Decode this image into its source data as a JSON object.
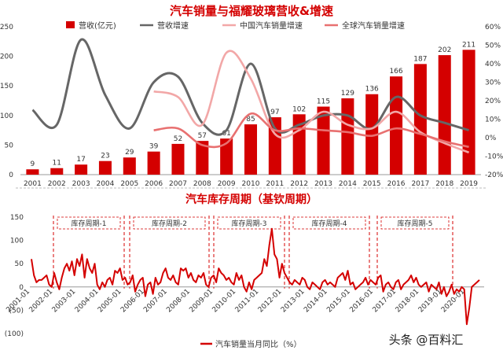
{
  "charts": [
    {
      "type": "bar",
      "title": "汽车销量与福耀玻璃营收&增速",
      "x": [
        "2001",
        "2002",
        "2003",
        "2004",
        "2005",
        "2006",
        "2007",
        "2008",
        "2009",
        "2010",
        "2011",
        "2012",
        "2013",
        "2014",
        "2015",
        "2016",
        "2017",
        "2018",
        "2019"
      ],
      "series": [
        {
          "name": "营收(亿元)",
          "kind": "bar",
          "axis": "left",
          "color": "#d40000",
          "values": [
            9,
            11,
            17,
            23,
            29,
            39,
            52,
            57,
            61,
            85,
            97,
            102,
            115,
            129,
            136,
            166,
            187,
            202,
            211
          ]
        },
        {
          "name": "营收增速",
          "kind": "line",
          "axis": "right",
          "color": "#666666",
          "values": [
            15,
            7,
            53,
            23,
            5,
            30,
            33,
            8,
            4,
            40,
            5,
            7,
            12,
            12,
            5,
            22,
            12,
            8,
            4
          ]
        },
        {
          "name": "中国汽车销量增速",
          "kind": "line",
          "axis": "right",
          "color": "#f2a7a7",
          "values": [
            null,
            null,
            null,
            null,
            null,
            25,
            22,
            7,
            46,
            32,
            2,
            4,
            14,
            7,
            5,
            14,
            3,
            -3,
            -8
          ]
        },
        {
          "name": "全球汽车销量增速",
          "kind": "line",
          "axis": "right",
          "color": "#e87070",
          "values": [
            null,
            null,
            null,
            null,
            null,
            4,
            5,
            -4,
            -3,
            13,
            4,
            5,
            4,
            3,
            1,
            5,
            2,
            -2,
            -5
          ]
        }
      ],
      "ylim_left": [
        0,
        250
      ],
      "yticks_left": [
        "0",
        "50",
        "100",
        "150",
        "200",
        "250"
      ],
      "ylim_right": [
        -20,
        60
      ],
      "yticks_right": [
        "-20%",
        "-10%",
        "0%",
        "10%",
        "20%",
        "30%",
        "40%",
        "50%",
        "60%"
      ],
      "grid": false,
      "legend": "top"
    },
    {
      "type": "line",
      "title": "汽车库存周期（基钦周期）",
      "x_ticks": [
        "2001-01",
        "2002-01",
        "2003-01",
        "2004-01",
        "2005-01",
        "2006-01",
        "2007-01",
        "2008-01",
        "2009-01",
        "2010-01",
        "2011-01",
        "2012-01",
        "2013-01",
        "2014-01",
        "2015-01",
        "2016-01",
        "2017-01",
        "2018-01",
        "2019-01",
        "2020-01"
      ],
      "yticks": [
        "150",
        "100",
        "50",
        "0",
        "(50)",
        "(100)"
      ],
      "ylim": [
        -100,
        150
      ],
      "series": [
        {
          "name": "汽车销量当月同比（%）",
          "color": "#d40000",
          "values": [
            60,
            25,
            10,
            15,
            15,
            20,
            25,
            5,
            0,
            30,
            10,
            -5,
            20,
            40,
            50,
            35,
            55,
            25,
            60,
            45,
            70,
            20,
            60,
            40,
            30,
            50,
            5,
            -5,
            10,
            0,
            15,
            20,
            5,
            35,
            30,
            40,
            15,
            20,
            5,
            10,
            25,
            -10,
            5,
            15,
            20,
            -20,
            5,
            10,
            -15,
            20,
            5,
            10,
            30,
            40,
            20,
            15,
            25,
            10,
            5,
            40,
            35,
            40,
            20,
            30,
            15,
            10,
            25,
            20,
            30,
            5,
            0,
            20,
            25,
            10,
            40,
            30,
            25,
            15,
            20,
            10,
            5,
            30,
            15,
            25,
            0,
            -10,
            10,
            -5,
            15,
            20,
            25,
            30,
            60,
            45,
            90,
            125,
            70,
            60,
            20,
            50,
            30,
            20,
            10,
            5,
            15,
            10,
            5,
            20,
            15,
            0,
            -5,
            10,
            5,
            0,
            -5,
            10,
            15,
            5,
            10,
            5,
            0,
            20,
            25,
            30,
            15,
            35,
            5,
            10,
            -5,
            0,
            5,
            10,
            20,
            5,
            15,
            10,
            5,
            20,
            25,
            -10,
            5,
            10,
            0,
            -5,
            10,
            15,
            -5,
            5,
            10,
            15,
            25,
            10,
            20,
            5,
            0,
            5,
            10,
            -10,
            5,
            0,
            -5,
            10,
            -15,
            0,
            -20,
            -10,
            5,
            -15,
            -5,
            -10,
            0,
            -5,
            -80,
            -45,
            0,
            5,
            10,
            15
          ]
        }
      ],
      "annotations": [
        "库存周期-1",
        "库存周期-2",
        "库存周期-3",
        "库存周期-4",
        "库存周期-5"
      ],
      "legend": "bottom"
    }
  ],
  "watermark": "头条 @百料汇"
}
